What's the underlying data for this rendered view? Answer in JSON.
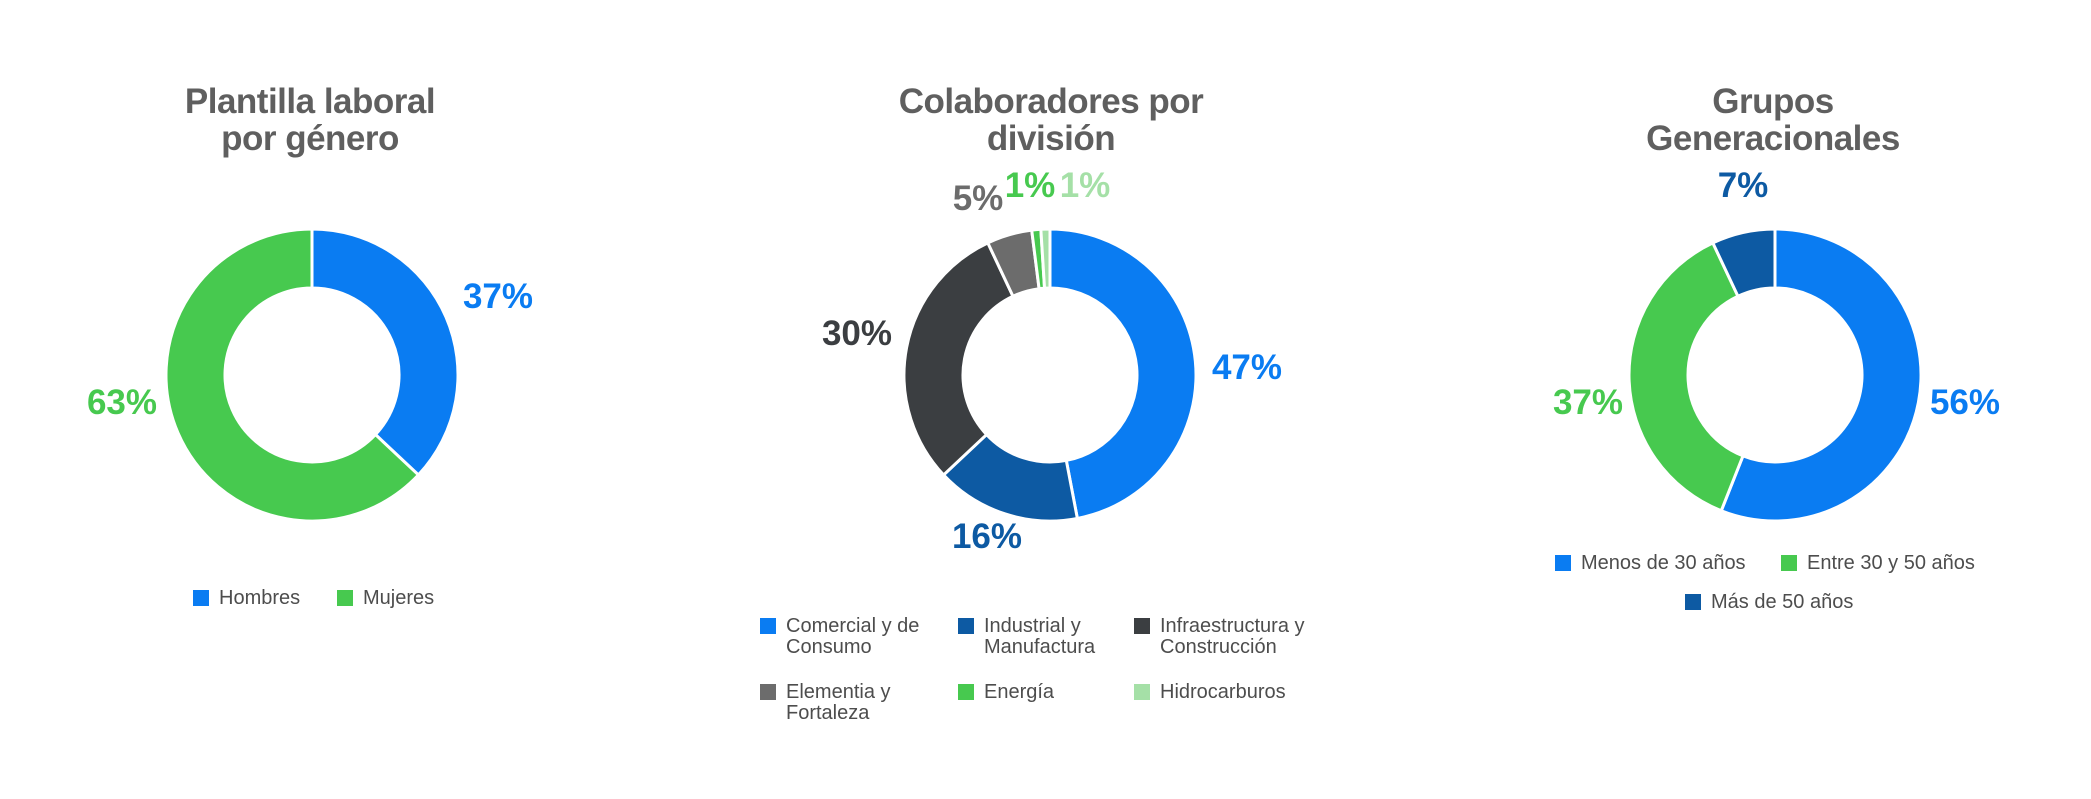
{
  "chart_data": [
    {
      "type": "pie",
      "title": [
        "Plantilla laboral",
        "por género"
      ],
      "labels": [
        "Hombres",
        "Mujeres"
      ],
      "values": [
        37,
        63
      ],
      "value_labels": [
        "37%",
        "63%"
      ],
      "colors": [
        "#0a7cf2",
        "#47c94f"
      ],
      "legend": [
        [
          "Hombres"
        ],
        [
          "Mujeres"
        ]
      ],
      "legend_position": "bottom"
    },
    {
      "type": "pie",
      "title": [
        "Colaboradores por",
        "división"
      ],
      "labels": [
        "Comercial y de Consumo",
        "Industrial y Manufactura",
        "Infraestructura y Construcción",
        "Elementia y Fortaleza",
        "Energía",
        "Hidrocarburos"
      ],
      "values": [
        47,
        16,
        30,
        5,
        1,
        1
      ],
      "value_labels": [
        "47%",
        "16%",
        "30%",
        "5%",
        "1%",
        "1%"
      ],
      "colors": [
        "#0a7cf2",
        "#0d5aa3",
        "#3b3e41",
        "#6c6c6c",
        "#47c94f",
        "#a5e0a7"
      ],
      "legend": [
        [
          "Comercial y de",
          "Consumo"
        ],
        [
          "Industrial y",
          "Manufactura"
        ],
        [
          "Infraestructura y",
          "Construcción"
        ],
        [
          "Elementia y",
          "Fortaleza"
        ],
        [
          "Energía"
        ],
        [
          "Hidrocarburos"
        ]
      ],
      "legend_position": "bottom"
    },
    {
      "type": "pie",
      "title": [
        "Grupos",
        "Generacionales"
      ],
      "labels": [
        "Menos de 30 años",
        "Entre 30 y 50 años",
        "Más de 50 años"
      ],
      "values": [
        56,
        37,
        7
      ],
      "value_labels": [
        "56%",
        "37%",
        "7%"
      ],
      "colors": [
        "#0a7cf2",
        "#47c94f",
        "#0d5aa3"
      ],
      "legend": [
        [
          "Menos de 30 años"
        ],
        [
          "Entre 30 y 50 años"
        ],
        [
          "Más de 50 años"
        ]
      ],
      "legend_position": "bottom"
    }
  ]
}
